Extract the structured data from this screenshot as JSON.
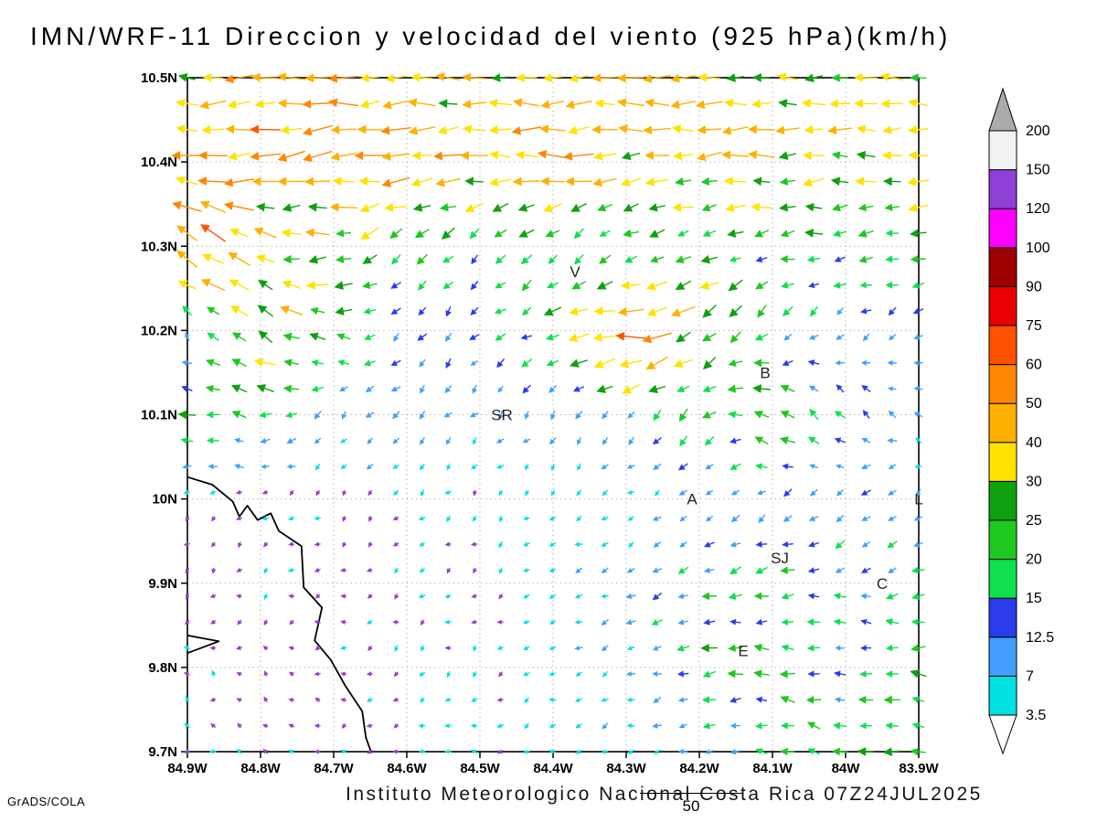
{
  "footer": {
    "institute": "Instituto Meteorologico Nacional Costa Rica 07Z24JUL2025",
    "reference_value": "50",
    "credit": "GrADS/COLA"
  },
  "chart_data": {
    "type": "quiver",
    "title": "IMN/WRF-11 Direccion y velocidad del viento (925 hPa)(km/h)",
    "units": "km/h",
    "level": "925 hPa",
    "grid": "dotted",
    "x_axis": {
      "tick_labels": [
        "84.9W",
        "84.8W",
        "84.7W",
        "84.6W",
        "84.5W",
        "84.4W",
        "84.3W",
        "84.2W",
        "84.1W",
        "84W",
        "83.9W"
      ],
      "tick_values": [
        -84.9,
        -84.8,
        -84.7,
        -84.6,
        -84.5,
        -84.4,
        -84.3,
        -84.2,
        -84.1,
        -84.0,
        -83.9
      ],
      "range": [
        -84.9,
        -83.9
      ]
    },
    "y_axis": {
      "tick_labels": [
        "10.5N",
        "10.4N",
        "10.3N",
        "10.2N",
        "10.1N",
        "10N",
        "9.9N",
        "9.8N",
        "9.7N"
      ],
      "tick_values": [
        10.5,
        10.4,
        10.3,
        10.2,
        10.1,
        10.0,
        9.9,
        9.8,
        9.7
      ],
      "range": [
        9.7,
        10.5
      ]
    },
    "colorbar": {
      "levels": [
        3.5,
        7,
        12.5,
        15,
        20,
        25,
        30,
        40,
        50,
        60,
        75,
        90,
        100,
        120,
        150,
        200
      ],
      "band_colors": [
        "#00e1e1",
        "#41a0ff",
        "#2a3cec",
        "#0ee04e",
        "#1fc81f",
        "#0fa00f",
        "#ffe300",
        "#ffb000",
        "#ff8700",
        "#ff5200",
        "#ea0000",
        "#9e0000",
        "#ff00ff",
        "#8d3fd6",
        "#f2f2f2"
      ],
      "under_triangle_color": "#ffffff",
      "over_triangle_color": "#ababab",
      "calm_arrow_color": "#9a3bcf"
    },
    "stations": [
      {
        "name": "V",
        "lon": -84.37,
        "lat": 10.27
      },
      {
        "name": "B",
        "lon": -84.11,
        "lat": 10.15
      },
      {
        "name": "SR",
        "lon": -84.47,
        "lat": 10.1
      },
      {
        "name": "A",
        "lon": -84.21,
        "lat": 10.0
      },
      {
        "name": "SJ",
        "lon": -84.09,
        "lat": 9.93
      },
      {
        "name": "E",
        "lon": -84.14,
        "lat": 9.82
      },
      {
        "name": "C",
        "lon": -83.95,
        "lat": 9.9
      },
      {
        "name": "L",
        "lon": -83.9,
        "lat": 10.0
      }
    ],
    "coastline": [
      [
        [
          -84.9,
          10.026
        ],
        [
          -84.866,
          10.017
        ],
        [
          -84.838,
          9.997
        ],
        [
          -84.829,
          9.979
        ],
        [
          -84.818,
          9.992
        ],
        [
          -84.804,
          9.975
        ],
        [
          -84.786,
          9.983
        ],
        [
          -84.775,
          9.962
        ],
        [
          -84.744,
          9.944
        ],
        [
          -84.741,
          9.895
        ],
        [
          -84.716,
          9.871
        ],
        [
          -84.726,
          9.832
        ],
        [
          -84.704,
          9.809
        ],
        [
          -84.684,
          9.778
        ],
        [
          -84.661,
          9.748
        ],
        [
          -84.656,
          9.717
        ],
        [
          -84.649,
          9.7
        ]
      ],
      [
        [
          -84.9,
          9.817
        ],
        [
          -84.857,
          9.831
        ],
        [
          -84.9,
          9.838
        ]
      ]
    ],
    "wind_grid": {
      "lons": [
        -84.9,
        -84.8,
        -84.7,
        -84.6,
        -84.5,
        -84.4,
        -84.3,
        -84.2,
        -84.1,
        -84.0,
        -83.9
      ],
      "lats": [
        10.5,
        10.4,
        10.3,
        10.2,
        10.1,
        10.0,
        9.9,
        9.8,
        9.7
      ],
      "u": [
        [
          -38,
          -42,
          -45,
          -40,
          -36,
          -38,
          -40,
          -38,
          -34,
          -32,
          -30
        ],
        [
          -48,
          -52,
          -50,
          -46,
          -44,
          -44,
          -42,
          -40,
          -36,
          -34,
          -32
        ],
        [
          -55,
          -30,
          -28,
          -18,
          -12,
          -10,
          -12,
          -16,
          -20,
          -22,
          -20
        ],
        [
          -4,
          -35,
          -25,
          -7,
          -7,
          -25,
          -60,
          -30,
          -10,
          -6,
          -8
        ],
        [
          -24,
          -16,
          -8,
          -6,
          -5,
          -6,
          -7,
          -14,
          -28,
          -12,
          -7
        ],
        [
          -2,
          -2,
          -2,
          -3,
          -3,
          -3,
          -4,
          -6,
          -9,
          -8,
          -6
        ],
        [
          -2,
          -3,
          -2,
          -3,
          -3,
          -4,
          -9,
          -16,
          -18,
          -14,
          -17
        ],
        [
          -3,
          -2,
          -3,
          -3,
          -3,
          -4,
          -7,
          -20,
          -20,
          -12,
          -20
        ],
        [
          -3,
          -3,
          -3,
          -3,
          -4,
          -4,
          -5,
          -8,
          -15,
          -22,
          -24
        ]
      ],
      "v": [
        [
          0,
          -2,
          -3,
          -2,
          -1,
          0,
          -2,
          -2,
          -1,
          0,
          0
        ],
        [
          -2,
          -6,
          -6,
          -4,
          -3,
          -3,
          -3,
          -2,
          -2,
          -2,
          -2
        ],
        [
          35,
          12,
          -6,
          -14,
          -12,
          -14,
          -10,
          -8,
          -4,
          -3,
          -3
        ],
        [
          6,
          20,
          6,
          -10,
          -8,
          -6,
          -4,
          -18,
          -14,
          -8,
          -5
        ],
        [
          2,
          2,
          -8,
          -7,
          -6,
          -8,
          -9,
          -14,
          18,
          14,
          6
        ],
        [
          -2,
          -2,
          -2,
          -2,
          -3,
          -3,
          -3,
          -5,
          -8,
          -9,
          -6
        ],
        [
          -2,
          -2,
          -2,
          -2,
          -2,
          -3,
          -4,
          -5,
          -3,
          -3,
          -4
        ],
        [
          2,
          1,
          -1,
          -2,
          -2,
          -2,
          -3,
          -4,
          2,
          4,
          3
        ],
        [
          1,
          1,
          0,
          -1,
          -1,
          -1,
          -2,
          -2,
          3,
          4,
          2
        ]
      ]
    }
  }
}
